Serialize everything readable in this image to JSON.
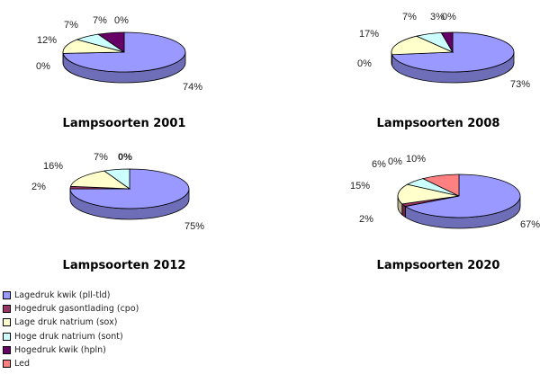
{
  "chart_data": [
    {
      "type": "pie",
      "title": "Lampsoorten 2001",
      "categories": [
        "Lagedruk kwik (pll-tld)",
        "Hogedruk gasontlading (cpo)",
        "Lage druk natrium (sox)",
        "Hoge druk natrium (sont)",
        "Hogedruk kwik (hpln)",
        "Led"
      ],
      "values": [
        74,
        0,
        12,
        7,
        7,
        0
      ],
      "labels": [
        "74%",
        "0%",
        "12%",
        "7%",
        "7%",
        "0%"
      ]
    },
    {
      "type": "pie",
      "title": "Lampsoorten 2008",
      "categories": [
        "Lagedruk kwik (pll-tld)",
        "Hogedruk gasontlading (cpo)",
        "Lage druk natrium (sox)",
        "Hoge druk natrium (sont)",
        "Hogedruk kwik (hpln)",
        "Led"
      ],
      "values": [
        73,
        0,
        17,
        7,
        3,
        0
      ],
      "labels": [
        "73%",
        "0%",
        "17%",
        "7%",
        "3%",
        "0%"
      ]
    },
    {
      "type": "pie",
      "title": "Lampsoorten 2012",
      "categories": [
        "Lagedruk kwik (pll-tld)",
        "Hogedruk gasontlading (cpo)",
        "Lage druk natrium (sox)",
        "Hoge druk natrium (sont)",
        "Hogedruk kwik (hpln)",
        "Led"
      ],
      "values": [
        75,
        2,
        16,
        7,
        0,
        0
      ],
      "labels": [
        "75%",
        "2%",
        "16%",
        "7%",
        "",
        "0%"
      ]
    },
    {
      "type": "pie",
      "title": "Lampsoorten 2020",
      "categories": [
        "Lagedruk kwik (pll-tld)",
        "Hogedruk gasontlading (cpo)",
        "Lage druk natrium (sox)",
        "Hoge druk natrium (sont)",
        "Hogedruk kwik (hpln)",
        "Led"
      ],
      "values": [
        67,
        2,
        15,
        6,
        0,
        10
      ],
      "labels": [
        "67%",
        "2%",
        "15%",
        "6%",
        "0%",
        "10%"
      ]
    }
  ],
  "legend": {
    "placement": "bottom-left",
    "items": [
      {
        "label": "Lagedruk kwik (pll-tld)",
        "color": "#9999ff"
      },
      {
        "label": "Hogedruk gasontlading (cpo)",
        "color": "#993366"
      },
      {
        "label": "Lage druk natrium (sox)",
        "color": "#ffffcc"
      },
      {
        "label": "Hoge druk natrium (sont)",
        "color": "#ccffff"
      },
      {
        "label": "Hogedruk kwik (hpln)",
        "color": "#660066"
      },
      {
        "label": "Led",
        "color": "#ff8080"
      }
    ]
  }
}
